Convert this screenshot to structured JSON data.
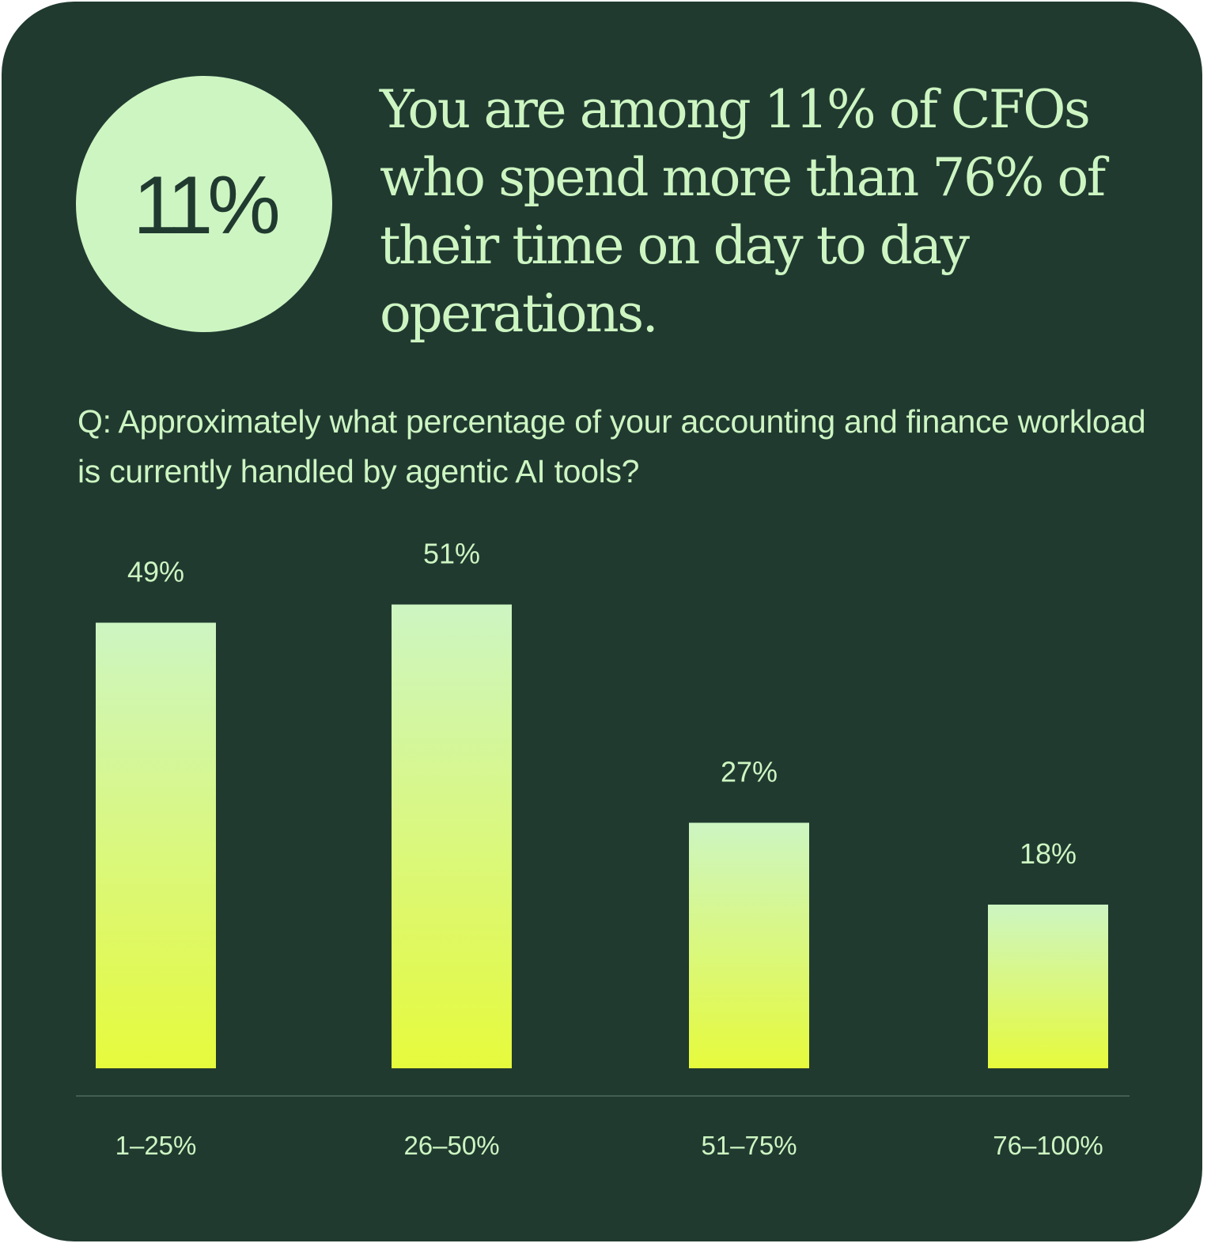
{
  "badge": {
    "value": "11%"
  },
  "headline": "You are among 11% of CFOs who spend more than 76% of their time on day to day operations.",
  "question": "Q: Approximately what percentage of your accounting and finance workload is currently handled by agentic AI tools?",
  "colors": {
    "background": "#213a30",
    "accent": "#cdf5c2",
    "bar_top": "#cdf5c2",
    "bar_bottom": "#e6fa3c",
    "baseline": "#4f6a5c"
  },
  "chart_data": {
    "type": "bar",
    "categories": [
      "1–25%",
      "26–50%",
      "51–75%",
      "76–100%"
    ],
    "values": [
      49,
      51,
      27,
      18
    ],
    "value_labels": [
      "49%",
      "51%",
      "27%",
      "18%"
    ],
    "title": "",
    "xlabel": "",
    "ylabel": "",
    "grid": false,
    "legend": "none"
  }
}
